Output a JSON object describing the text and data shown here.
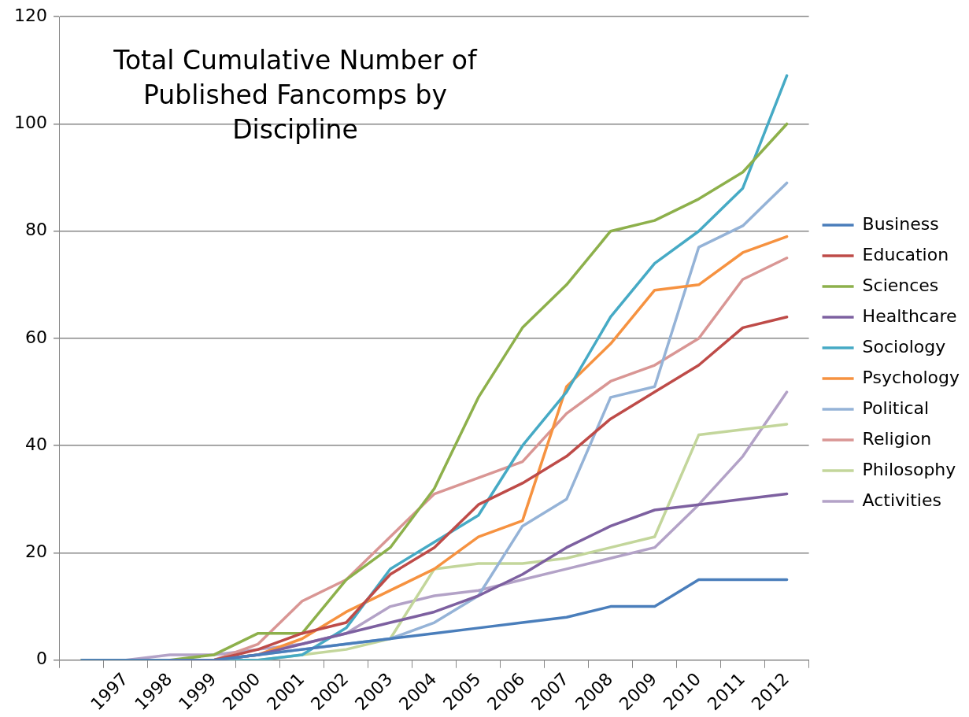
{
  "chart_data": {
    "type": "line",
    "title": "Total Cumulative Number of Published Fancomps by Discipline",
    "categories": [
      null,
      "1997",
      "1998",
      "1999",
      "2000",
      "2001",
      "2002",
      "2003",
      "2004",
      "2005",
      "2006",
      "2007",
      "2008",
      "2009",
      "2010",
      "2011",
      "2012"
    ],
    "ylim": [
      0,
      120
    ],
    "yticks": [
      0,
      20,
      40,
      60,
      80,
      100,
      120
    ],
    "grid": "y",
    "legend": "right",
    "marker": "none",
    "line_style": "solid",
    "series": [
      {
        "name": "Business",
        "color": "#4a7ebb",
        "values": [
          0,
          0,
          0,
          0,
          1,
          2,
          3,
          4,
          5,
          6,
          7,
          8,
          10,
          10,
          15,
          15,
          15
        ]
      },
      {
        "name": "Education",
        "color": "#be4b48",
        "values": [
          null,
          null,
          0,
          0,
          2,
          5,
          7,
          16,
          21,
          29,
          33,
          38,
          45,
          50,
          55,
          62,
          64
        ]
      },
      {
        "name": "Sciences",
        "color": "#8db04b",
        "values": [
          0,
          0,
          0,
          1,
          5,
          5,
          15,
          21,
          32,
          49,
          62,
          70,
          80,
          82,
          86,
          91,
          100
        ]
      },
      {
        "name": "Healthcare",
        "color": "#7d60a0",
        "values": [
          0,
          0,
          0,
          0,
          1,
          3,
          5,
          7,
          9,
          12,
          16,
          21,
          25,
          28,
          29,
          30,
          31
        ]
      },
      {
        "name": "Sociology",
        "color": "#46aac5",
        "values": [
          null,
          null,
          0,
          0,
          0,
          1,
          6,
          17,
          22,
          27,
          40,
          50,
          64,
          74,
          80,
          88,
          109
        ]
      },
      {
        "name": "Psychology",
        "color": "#f69240",
        "values": [
          null,
          null,
          0,
          0,
          1,
          4,
          9,
          13,
          17,
          23,
          26,
          51,
          59,
          69,
          70,
          76,
          79
        ]
      },
      {
        "name": "Political",
        "color": "#95b3d7",
        "values": [
          0,
          0,
          0,
          0,
          1,
          2,
          3,
          4,
          7,
          12,
          25,
          30,
          49,
          51,
          77,
          81,
          89
        ]
      },
      {
        "name": "Religion",
        "color": "#d99694",
        "values": [
          0,
          0,
          0,
          0,
          3,
          11,
          15,
          23,
          31,
          34,
          37,
          46,
          52,
          55,
          60,
          71,
          75
        ]
      },
      {
        "name": "Philosophy",
        "color": "#c3d69b",
        "values": [
          0,
          0,
          0,
          0,
          0,
          1,
          2,
          4,
          17,
          18,
          18,
          19,
          21,
          23,
          42,
          43,
          44
        ]
      },
      {
        "name": "Activities",
        "color": "#b3a2c7",
        "values": [
          0,
          0,
          1,
          1,
          2,
          3,
          5,
          10,
          12,
          13,
          15,
          17,
          19,
          21,
          29,
          38,
          50
        ]
      }
    ]
  }
}
